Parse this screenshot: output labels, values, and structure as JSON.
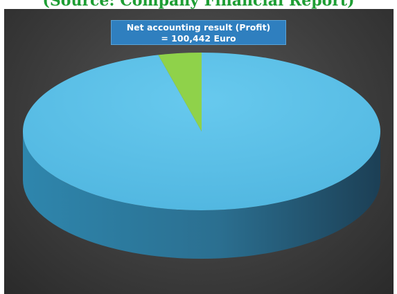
{
  "chart_data": {
    "type": "pie",
    "title": "(Source: Company Financial Report)",
    "slices": [
      {
        "name": "",
        "value": 96.1
      },
      {
        "name": "Net accounting result (Profit)",
        "value": 3.9
      }
    ],
    "annotation": {
      "line1": "Net accounting result (Profit)",
      "line2": "= 100,442 Euro"
    },
    "colors": {
      "large_slice_top": "#5bc1e8",
      "small_slice_top": "#8fd24a",
      "side_light": "#3a9ac4",
      "side_dark": "#1f4a63"
    },
    "style": "3d"
  }
}
